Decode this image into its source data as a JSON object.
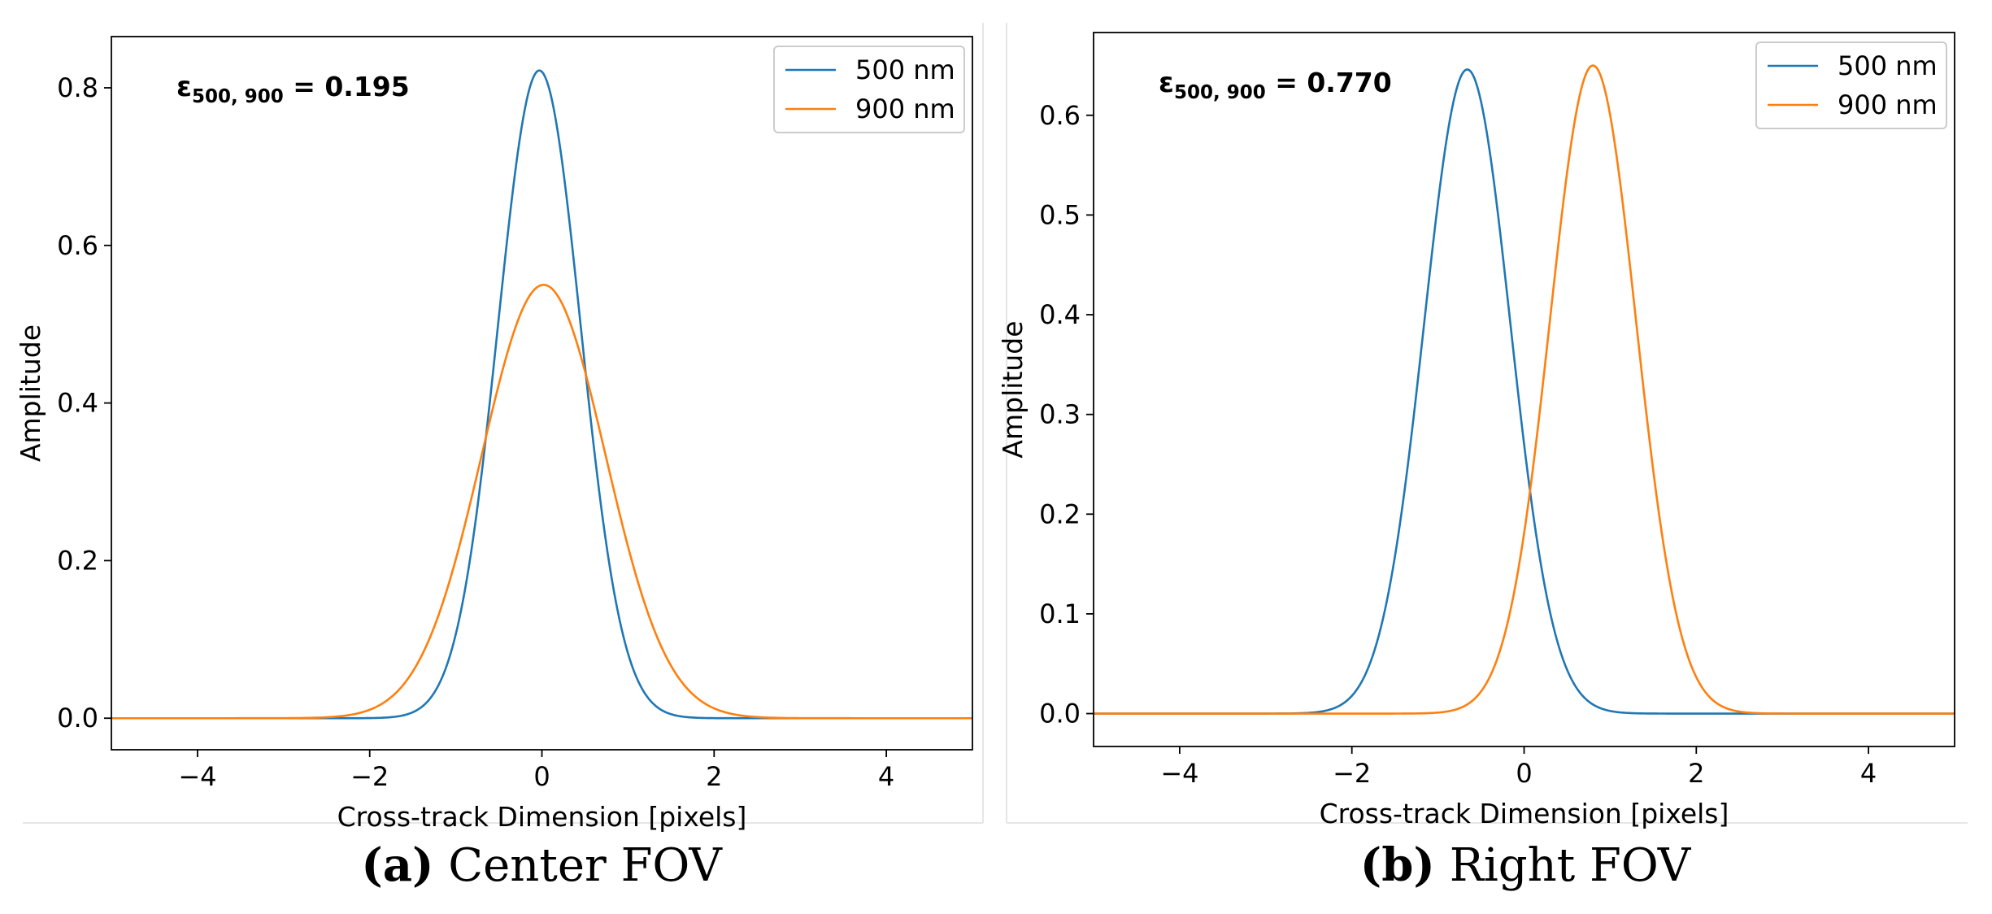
{
  "chart_data": [
    {
      "type": "line",
      "panel_label": "(a)",
      "caption": "Center FOV",
      "annotation": {
        "symbol": "ε",
        "subscript": "500, 900",
        "text": " = 0.195"
      },
      "xlabel": "Cross-track Dimension [pixels]",
      "ylabel": "Amplitude",
      "xlim": [
        -5,
        5
      ],
      "ylim": [
        -0.04,
        0.865
      ],
      "xticks": [
        -4,
        -2,
        0,
        2,
        4
      ],
      "xtick_labels": [
        "−4",
        "−2",
        "0",
        "2",
        "4"
      ],
      "yticks": [
        0.0,
        0.2,
        0.4,
        0.6,
        0.8
      ],
      "ytick_labels": [
        "0.0",
        "0.2",
        "0.4",
        "0.6",
        "0.8"
      ],
      "legend_position": "top-right",
      "series": [
        {
          "name": "500 nm",
          "color": "#1f77b4",
          "shape": "gaussian",
          "center": -0.03,
          "amplitude": 0.822,
          "sigma": 0.48
        },
        {
          "name": "900 nm",
          "color": "#ff7f0e",
          "shape": "gaussian",
          "center": 0.02,
          "amplitude": 0.55,
          "sigma": 0.72
        }
      ]
    },
    {
      "type": "line",
      "panel_label": "(b)",
      "caption": "Right FOV",
      "annotation": {
        "symbol": "ε",
        "subscript": "500, 900",
        "text": " = 0.770"
      },
      "xlabel": "Cross-track Dimension [pixels]",
      "ylabel": "Amplitude",
      "xlim": [
        -5,
        5
      ],
      "ylim": [
        -0.033,
        0.683
      ],
      "xticks": [
        -4,
        -2,
        0,
        2,
        4
      ],
      "xtick_labels": [
        "−4",
        "−2",
        "0",
        "2",
        "4"
      ],
      "yticks": [
        0.0,
        0.1,
        0.2,
        0.3,
        0.4,
        0.5,
        0.6
      ],
      "ytick_labels": [
        "0.0",
        "0.1",
        "0.2",
        "0.3",
        "0.4",
        "0.5",
        "0.6"
      ],
      "legend_position": "top-right",
      "series": [
        {
          "name": "500 nm",
          "color": "#1f77b4",
          "shape": "gaussian",
          "center": -0.66,
          "amplitude": 0.646,
          "sigma": 0.5
        },
        {
          "name": "900 nm",
          "color": "#ff7f0e",
          "shape": "gaussian",
          "center": 0.8,
          "amplitude": 0.65,
          "sigma": 0.5
        }
      ]
    }
  ]
}
